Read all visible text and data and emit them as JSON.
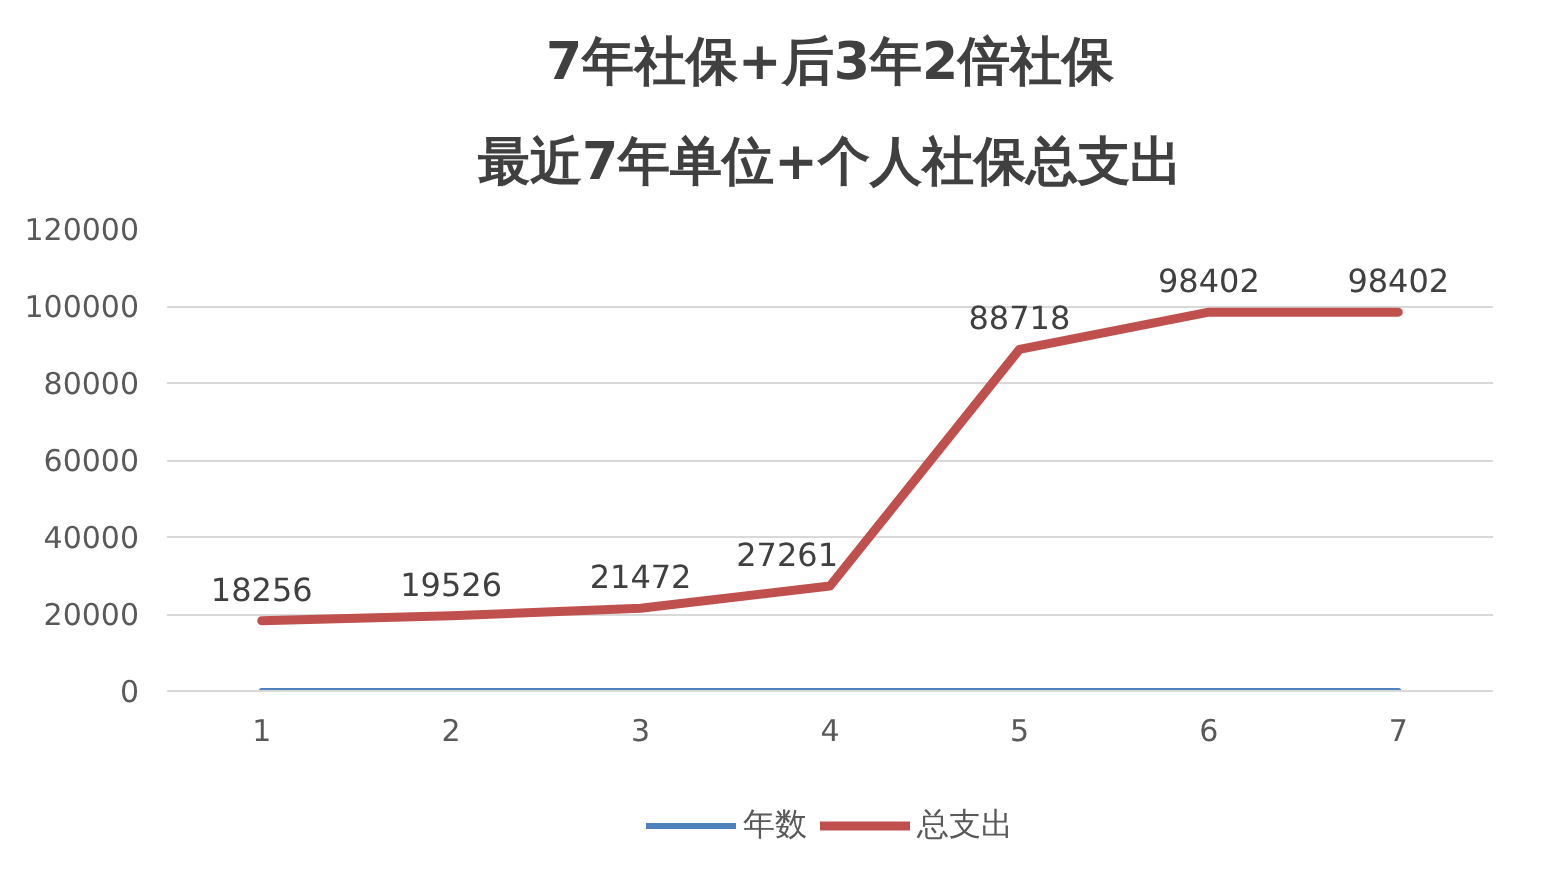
{
  "chart_data": {
    "type": "line",
    "title": "7年社保+后3年2倍社保",
    "subtitle": "最近7年单位+个人社保总支出",
    "categories": [
      "1",
      "2",
      "3",
      "4",
      "5",
      "6",
      "7"
    ],
    "series": [
      {
        "name": "年数",
        "color": "#4f81bd",
        "values": [
          0,
          0,
          0,
          0,
          0,
          0,
          0
        ]
      },
      {
        "name": "总支出",
        "color": "#c0504d",
        "values": [
          18256,
          19526,
          21472,
          27261,
          88718,
          98402,
          98402
        ],
        "value_labels": [
          "18256",
          "19526",
          "21472",
          "27261",
          "88718",
          "98402",
          "98402"
        ]
      }
    ],
    "ylim": [
      0,
      120000
    ],
    "yticks": [
      0,
      20000,
      40000,
      60000,
      80000,
      100000,
      120000
    ],
    "grid": "y",
    "legend": "bottom"
  }
}
